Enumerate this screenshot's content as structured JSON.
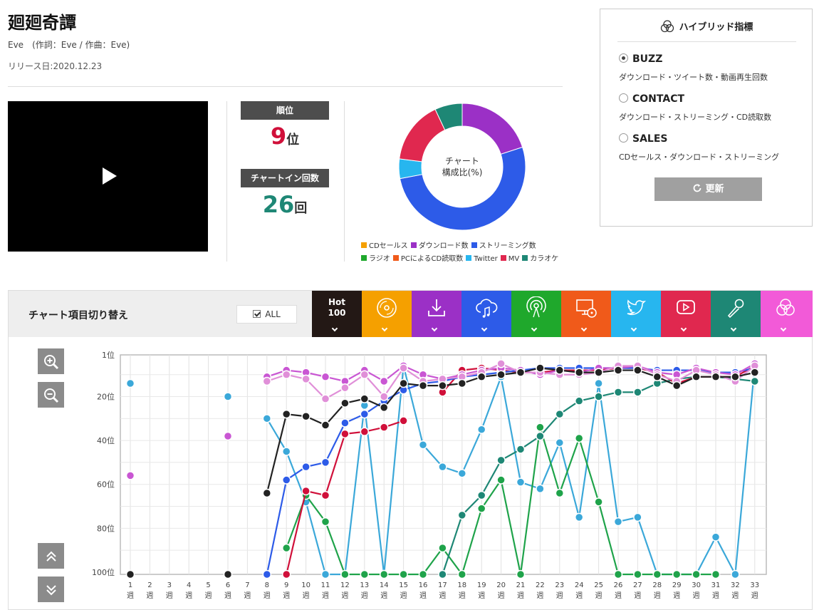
{
  "song": {
    "title": "廻廻奇譚",
    "artist_line": "Eve　(作詞：Eve / 作曲：Eve)",
    "release": "リリース日:2020.12.23"
  },
  "stats": {
    "rank_label": "順位",
    "rank_value": "9",
    "rank_unit": "位",
    "count_label": "チャートイン回数",
    "count_value": "26",
    "count_unit": "回"
  },
  "donut": {
    "center_line1": "チャート",
    "center_line2": "構成比(%)",
    "segments": [
      {
        "name": "ダウンロード数",
        "value": 20,
        "color": "#9b30c6"
      },
      {
        "name": "ストリーミング数",
        "value": 52,
        "color": "#2d5be8"
      },
      {
        "name": "Twitter",
        "value": 5,
        "color": "#27b6ef"
      },
      {
        "name": "MV",
        "value": 16,
        "color": "#e0284f"
      },
      {
        "name": "カラオケ",
        "value": 7,
        "color": "#1e8775"
      }
    ],
    "legend_row1": [
      {
        "label": "CDセールス",
        "color": "#f5a000"
      },
      {
        "label": "ダウンロード数",
        "color": "#9b30c6"
      },
      {
        "label": "ストリーミング数",
        "color": "#2d5be8"
      }
    ],
    "legend_row2": [
      {
        "label": "ラジオ",
        "color": "#1fa82c"
      },
      {
        "label": "PCによるCD読取数",
        "color": "#f05a1a"
      },
      {
        "label": "Twitter",
        "color": "#27b6ef"
      },
      {
        "label": "MV",
        "color": "#e0284f"
      },
      {
        "label": "カラオケ",
        "color": "#1e8775"
      }
    ]
  },
  "hybrid": {
    "title": "ハイブリッド指標",
    "options": [
      {
        "label": "BUZZ",
        "desc": "ダウンロード・ツイート数・動画再生回数",
        "selected": true
      },
      {
        "label": "CONTACT",
        "desc": "ダウンロード・ストリーミング・CD読取数",
        "selected": false
      },
      {
        "label": "SALES",
        "desc": "CDセールス・ダウンロード・ストリーミング",
        "selected": false
      }
    ],
    "refresh_label": "更新"
  },
  "panel": {
    "title": "チャート項目切り替え",
    "all_label": "ALL",
    "hot_line1": "Hot",
    "hot_line2": "100",
    "tabs": [
      {
        "name": "hot100",
        "color": "#231815",
        "icon": "hot-100"
      },
      {
        "name": "cd-sales",
        "color": "#f5a000",
        "icon": "cd-icon"
      },
      {
        "name": "download",
        "color": "#9b30c6",
        "icon": "download-icon"
      },
      {
        "name": "streaming",
        "color": "#2d5be8",
        "icon": "cloud-music-icon"
      },
      {
        "name": "radio",
        "color": "#1fa82c",
        "icon": "radio-broadcast-icon"
      },
      {
        "name": "pc-cd-read",
        "color": "#f05a1a",
        "icon": "pc-cd-icon"
      },
      {
        "name": "twitter",
        "color": "#27b6ef",
        "icon": "twitter-bird-icon"
      },
      {
        "name": "mv",
        "color": "#e0284f",
        "icon": "play-screen-icon"
      },
      {
        "name": "karaoke",
        "color": "#1e8775",
        "icon": "microphone-icon"
      },
      {
        "name": "hybrid",
        "color": "#f25ad8",
        "icon": "hybrid-circles-icon"
      }
    ]
  },
  "chart_data": {
    "type": "line",
    "y_ticks": [
      "1位",
      "20位",
      "40位",
      "60位",
      "80位",
      "100位"
    ],
    "y_tick_values": [
      1,
      20,
      40,
      60,
      80,
      100
    ],
    "ylim": [
      1,
      101
    ],
    "y_inverted": true,
    "x": [
      1,
      2,
      3,
      4,
      5,
      6,
      7,
      8,
      9,
      10,
      11,
      12,
      13,
      14,
      15,
      16,
      17,
      18,
      19,
      20,
      21,
      22,
      23,
      24,
      25,
      26,
      27,
      28,
      29,
      30,
      31,
      32,
      33
    ],
    "x_unit": "週",
    "grid": true,
    "series": [
      {
        "id": "twitter",
        "color": "#3ba8d9",
        "values": [
          14,
          null,
          null,
          null,
          null,
          20,
          null,
          30,
          45,
          68,
          101,
          101,
          24,
          101,
          6,
          42,
          52,
          55,
          35,
          11,
          59,
          62,
          41,
          75,
          14,
          77,
          75,
          101,
          101,
          101,
          84,
          101,
          6
        ]
      },
      {
        "id": "radio",
        "color": "#1fa34a",
        "values": [
          null,
          null,
          null,
          null,
          null,
          null,
          null,
          null,
          89,
          65,
          77,
          101,
          101,
          101,
          101,
          101,
          89,
          101,
          71,
          58,
          101,
          34,
          64,
          39,
          68,
          101,
          101,
          101,
          101,
          101,
          101,
          null,
          null
        ]
      },
      {
        "id": "karaoke",
        "color": "#1e8775",
        "values": [
          null,
          null,
          null,
          null,
          null,
          null,
          null,
          null,
          null,
          null,
          null,
          null,
          null,
          null,
          null,
          null,
          101,
          74,
          65,
          49,
          44,
          38,
          28,
          22,
          20,
          18,
          18,
          14,
          12,
          11,
          11,
          12,
          13
        ]
      },
      {
        "id": "mv",
        "color": "#d0103a",
        "values": [
          null,
          null,
          null,
          null,
          null,
          null,
          null,
          null,
          101,
          63,
          65,
          37,
          36,
          34,
          31,
          null,
          18,
          8,
          7,
          8,
          9,
          9,
          8,
          8,
          8,
          7,
          7,
          9,
          14,
          11,
          11,
          11,
          6
        ]
      },
      {
        "id": "streaming",
        "color": "#2d5be8",
        "values": [
          null,
          null,
          null,
          null,
          null,
          null,
          null,
          101,
          58,
          52,
          50,
          32,
          28,
          22,
          17,
          14,
          13,
          11,
          10,
          9,
          8,
          7,
          7,
          7,
          7,
          7,
          7,
          8,
          8,
          8,
          9,
          9,
          7
        ]
      },
      {
        "id": "download",
        "color": "#c956d3",
        "values": [
          56,
          null,
          null,
          null,
          null,
          38,
          null,
          11,
          8,
          9,
          11,
          13,
          8,
          13,
          6,
          10,
          12,
          10,
          8,
          7,
          8,
          10,
          8,
          9,
          7,
          7,
          6,
          9,
          10,
          7,
          9,
          10,
          5
        ]
      },
      {
        "id": "download2",
        "color": "#e08fd8",
        "values": [
          null,
          null,
          null,
          null,
          null,
          null,
          null,
          13,
          10,
          12,
          21,
          16,
          10,
          20,
          7,
          13,
          12,
          11,
          9,
          5,
          9,
          9,
          10,
          10,
          9,
          6,
          6,
          10,
          13,
          8,
          10,
          13,
          6
        ]
      },
      {
        "id": "hot100",
        "color": "#222222",
        "values": [
          101,
          null,
          null,
          null,
          null,
          101,
          null,
          64,
          28,
          29,
          33,
          23,
          21,
          25,
          14,
          15,
          15,
          14,
          11,
          10,
          9,
          7,
          8,
          9,
          9,
          8,
          8,
          11,
          15,
          11,
          11,
          11,
          9
        ]
      }
    ]
  }
}
